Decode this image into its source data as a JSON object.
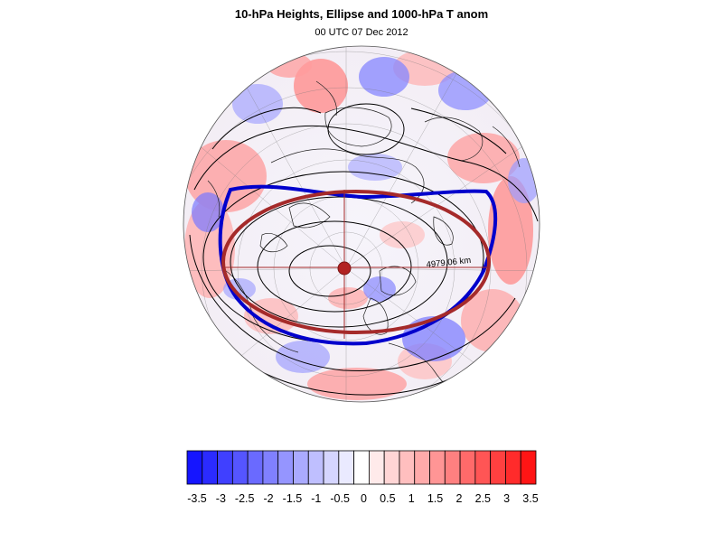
{
  "title": "10-hPa Heights, Ellipse and 1000-hPa T anom",
  "subtitle": "00 UTC 07 Dec 2012",
  "map": {
    "projection": "polar stereographic (north)",
    "contour_label": "4979.06 km",
    "colors": {
      "vortex_edge": "#0000cc",
      "ellipse": "#a52a2a",
      "centroid": "#b22222",
      "contours": "#000000",
      "coastlines": "#000000"
    }
  },
  "colorbar": {
    "colors": [
      "#1515ff",
      "#2b2bff",
      "#4040ff",
      "#5555ff",
      "#6a6aff",
      "#8080ff",
      "#9595ff",
      "#aaaaff",
      "#bfbfff",
      "#d5d5ff",
      "#eaeaff",
      "#ffffff",
      "#ffeaea",
      "#ffd5d5",
      "#ffbfbf",
      "#ffaaaa",
      "#ff9595",
      "#ff8080",
      "#ff6a6a",
      "#ff5555",
      "#ff4040",
      "#ff2b2b",
      "#ff1515"
    ],
    "tick_labels": [
      "-3.5",
      "-3",
      "-2.5",
      "-2",
      "-1.5",
      "-1",
      "-0.5",
      "0",
      "0.5",
      "1",
      "1.5",
      "2",
      "2.5",
      "3",
      "3.5"
    ]
  }
}
